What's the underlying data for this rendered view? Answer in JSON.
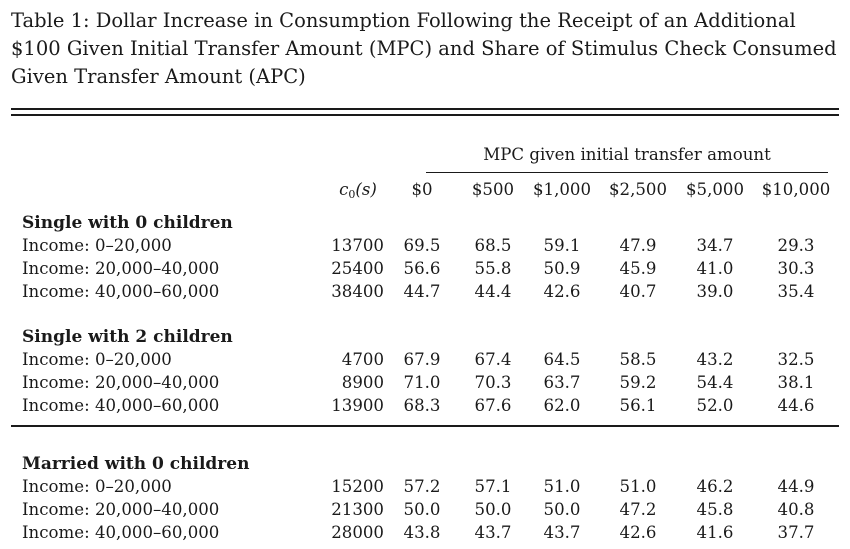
{
  "caption": {
    "lines": [
      "Table 1: Dollar Increase in Consumption Following the Receipt of an Additional",
      "$100 Given Initial Transfer Amount (MPC) and Share of Stimulus Check Consumed",
      "Given Transfer Amount (APC)"
    ]
  },
  "table": {
    "group_header": "MPC given initial transfer amount",
    "c0_header": {
      "base": "c",
      "sub": "0",
      "rest": "(s)"
    },
    "mpc_columns": [
      "$0",
      "$500",
      "$1,000",
      "$2,500",
      "$5,000",
      "$10,000"
    ],
    "sections": [
      {
        "title": "Single with 0 children",
        "rows": [
          {
            "label": "Income: 0–20,000",
            "c0": "13700",
            "values": [
              "69.5",
              "68.5",
              "59.1",
              "47.9",
              "34.7",
              "29.3"
            ]
          },
          {
            "label": "Income: 20,000–40,000",
            "c0": "25400",
            "values": [
              "56.6",
              "55.8",
              "50.9",
              "45.9",
              "41.0",
              "30.3"
            ]
          },
          {
            "label": "Income: 40,000–60,000",
            "c0": "38400",
            "values": [
              "44.7",
              "44.4",
              "42.6",
              "40.7",
              "39.0",
              "35.4"
            ]
          }
        ]
      },
      {
        "title": "Single with 2 children",
        "rows": [
          {
            "label": "Income: 0–20,000",
            "c0": "4700",
            "values": [
              "67.9",
              "67.4",
              "64.5",
              "58.5",
              "43.2",
              "32.5"
            ]
          },
          {
            "label": "Income: 20,000–40,000",
            "c0": "8900",
            "values": [
              "71.0",
              "70.3",
              "63.7",
              "59.2",
              "54.4",
              "38.1"
            ]
          },
          {
            "label": "Income: 40,000–60,000",
            "c0": "13900",
            "values": [
              "68.3",
              "67.6",
              "62.0",
              "56.1",
              "52.0",
              "44.6"
            ]
          }
        ]
      },
      {
        "title": "Married with 0 children",
        "rows": [
          {
            "label": "Income: 0–20,000",
            "c0": "15200",
            "values": [
              "57.2",
              "57.1",
              "51.0",
              "51.0",
              "46.2",
              "44.9"
            ]
          },
          {
            "label": "Income: 20,000–40,000",
            "c0": "21300",
            "values": [
              "50.0",
              "50.0",
              "50.0",
              "47.2",
              "45.8",
              "40.8"
            ]
          },
          {
            "label": "Income: 40,000–60,000",
            "c0": "28000",
            "values": [
              "43.8",
              "43.7",
              "43.7",
              "42.6",
              "41.6",
              "37.7"
            ]
          }
        ]
      }
    ]
  }
}
